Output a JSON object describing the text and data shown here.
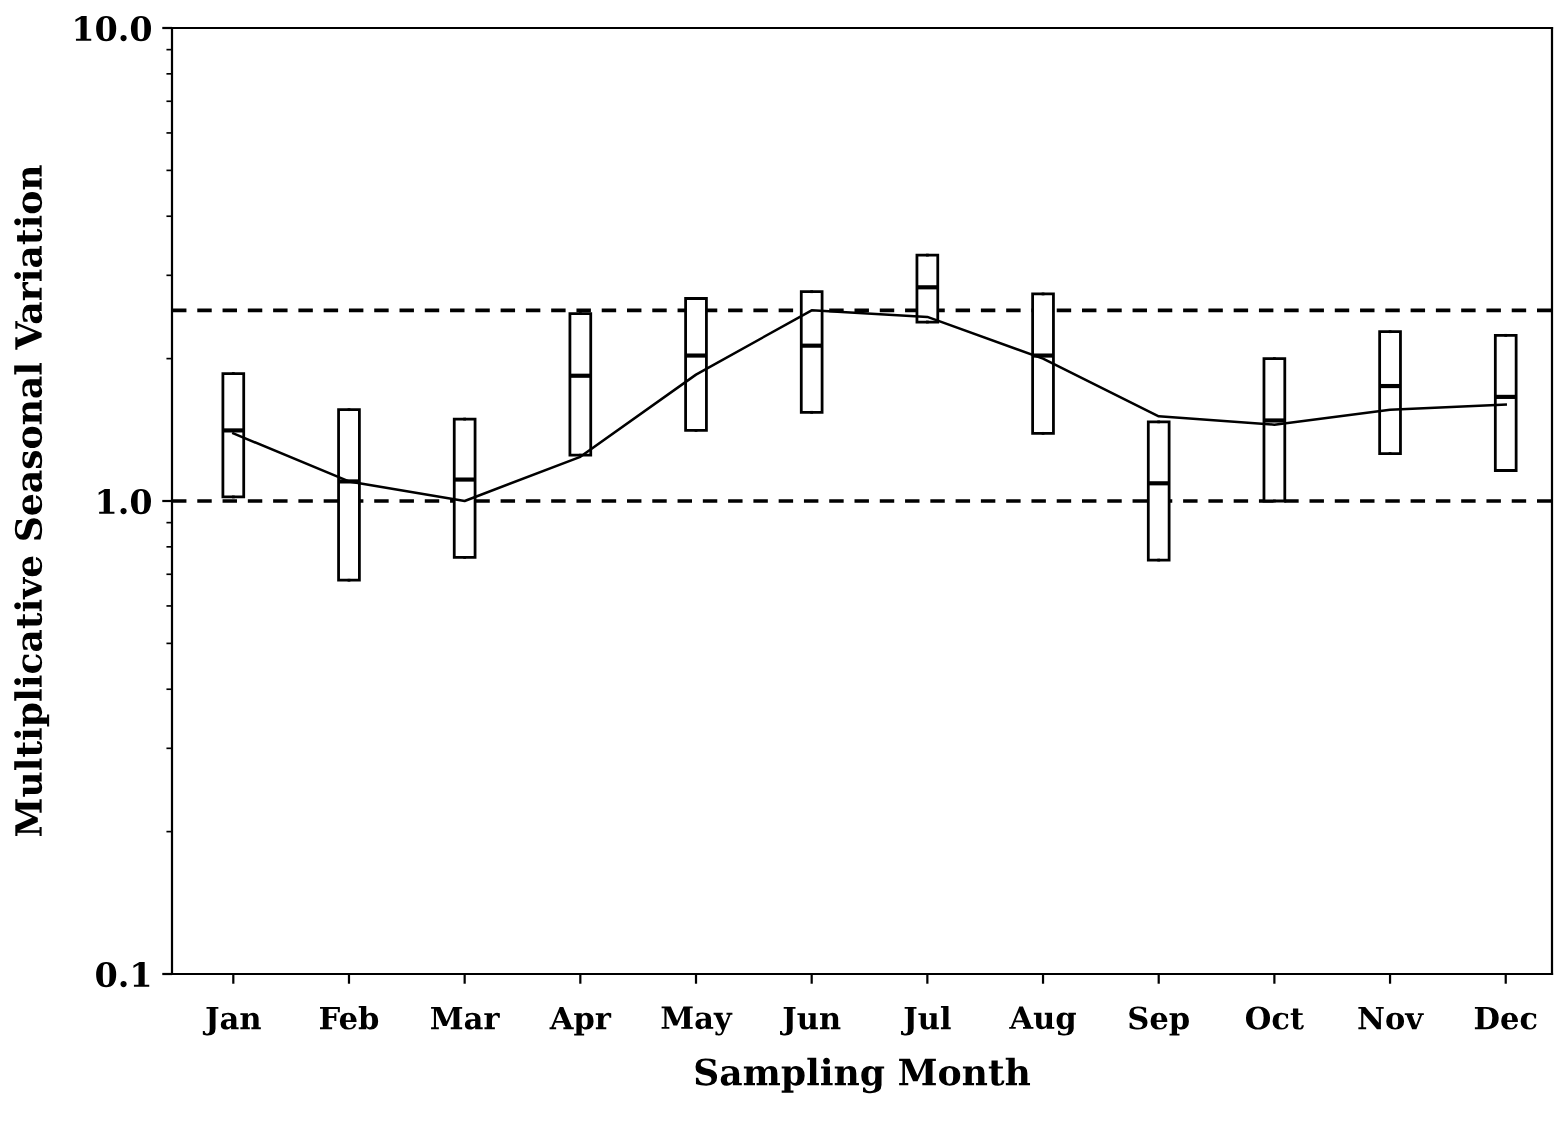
{
  "chart_data": {
    "type": "box",
    "xlabel": "Sampling Month",
    "ylabel": "Multiplicative Seasonal Variation",
    "categories": [
      "Jan",
      "Feb",
      "Mar",
      "Apr",
      "May",
      "Jun",
      "Jul",
      "Aug",
      "Sep",
      "Oct",
      "Nov",
      "Dec"
    ],
    "log": "y",
    "ylim": [
      0.1,
      10
    ],
    "yticks": [
      {
        "value": 0.1,
        "label": "0.1"
      },
      {
        "value": 1,
        "label": "1.0"
      },
      {
        "value": 10,
        "label": "10.0"
      }
    ],
    "grid": false,
    "legend": false,
    "series": [
      {
        "color": "#000000",
        "boxes": [
          {
            "low": 1.02,
            "q1": 1.02,
            "median": 1.41,
            "q3": 1.86,
            "high": 1.86
          },
          {
            "low": 0.68,
            "q1": 0.68,
            "median": 1.1,
            "q3": 1.56,
            "high": 1.56
          },
          {
            "low": 0.76,
            "q1": 0.76,
            "median": 1.11,
            "q3": 1.49,
            "high": 1.49
          },
          {
            "low": 1.25,
            "q1": 1.25,
            "median": 1.84,
            "q3": 2.49,
            "high": 2.49
          },
          {
            "low": 1.41,
            "q1": 1.41,
            "median": 2.03,
            "q3": 2.68,
            "high": 2.68
          },
          {
            "low": 1.54,
            "q1": 1.54,
            "median": 2.13,
            "q3": 2.77,
            "high": 2.77
          },
          {
            "low": 2.39,
            "q1": 2.39,
            "median": 2.83,
            "q3": 3.31,
            "high": 3.31
          },
          {
            "low": 1.39,
            "q1": 1.39,
            "median": 2.03,
            "q3": 2.74,
            "high": 2.74
          },
          {
            "low": 0.75,
            "q1": 0.75,
            "median": 1.09,
            "q3": 1.47,
            "high": 1.47
          },
          {
            "low": 1.0,
            "q1": 1.0,
            "median": 1.48,
            "q3": 2.0,
            "high": 2.0
          },
          {
            "low": 1.26,
            "q1": 1.26,
            "median": 1.75,
            "q3": 2.28,
            "high": 2.28
          },
          {
            "low": 1.16,
            "q1": 1.16,
            "median": 1.66,
            "q3": 2.24,
            "high": 2.24
          }
        ]
      },
      {
        "type": "line",
        "color": "#000000",
        "marker": "none",
        "line_style": "solid",
        "values": [
          1.39,
          1.1,
          1.0,
          1.24,
          1.85,
          2.53,
          2.45,
          2.0,
          1.51,
          1.45,
          1.56,
          1.6
        ]
      }
    ],
    "ref_lines": [
      {
        "axis": "y",
        "value": 1.0,
        "color": "#000000",
        "line_style": "dashed"
      },
      {
        "axis": "y",
        "value": 2.53,
        "color": "#000000",
        "line_style": "dashed"
      }
    ]
  }
}
